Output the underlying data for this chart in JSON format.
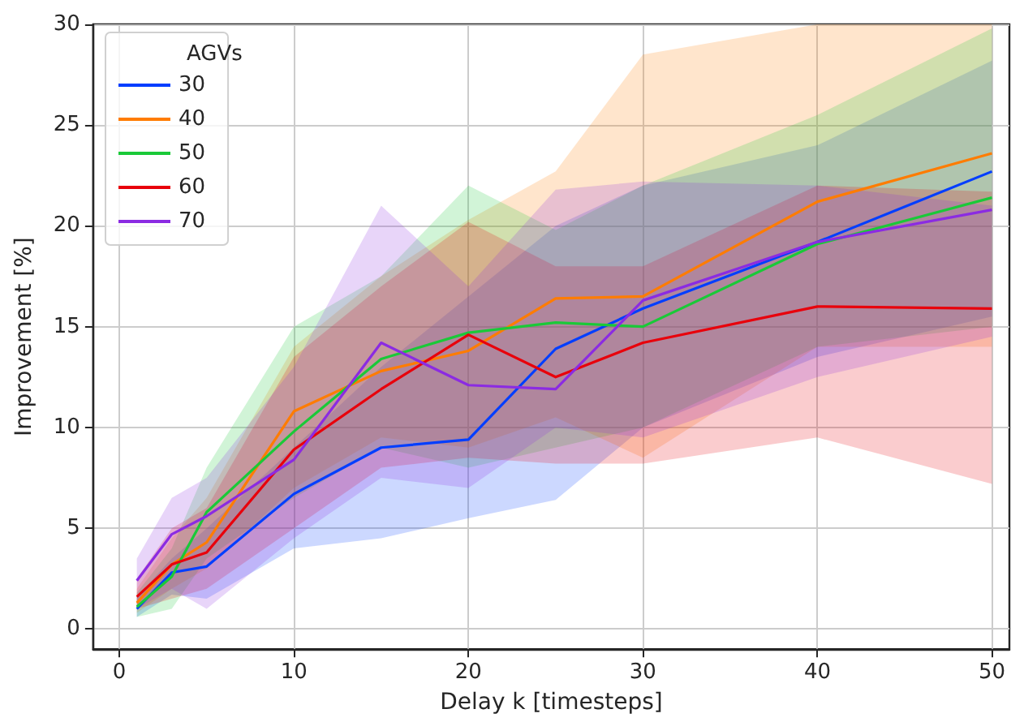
{
  "chart_data": {
    "type": "line",
    "xlabel": "Delay k [timesteps]",
    "ylabel": "Improvement [%]",
    "legend_title": "AGVs",
    "legend": "top left",
    "grid": true,
    "marker": "none",
    "line_style": "solid",
    "x": [
      1,
      3,
      5,
      10,
      15,
      20,
      25,
      30,
      40,
      50
    ],
    "xlim": [
      -1.5,
      51
    ],
    "xticks": [
      0,
      10,
      20,
      30,
      40,
      50
    ],
    "ylim": [
      -1,
      30
    ],
    "yticks": [
      0,
      5,
      10,
      15,
      20,
      25,
      30
    ],
    "series": [
      {
        "name": "30",
        "color": "#023eff",
        "values": [
          1.0,
          2.8,
          3.1,
          6.7,
          9.0,
          9.4,
          13.9,
          15.9,
          19.2,
          22.7
        ],
        "lower": [
          0.6,
          1.7,
          1.5,
          4.0,
          4.5,
          5.5,
          6.4,
          10.0,
          13.5,
          15.5
        ],
        "upper": [
          1.6,
          3.5,
          5.0,
          9.0,
          13.0,
          16.5,
          20.0,
          22.0,
          24.0,
          28.2
        ]
      },
      {
        "name": "40",
        "color": "#ff7c00",
        "values": [
          1.3,
          3.2,
          4.3,
          10.8,
          12.8,
          13.8,
          16.4,
          16.5,
          21.2,
          23.6
        ],
        "lower": [
          0.8,
          2.0,
          3.0,
          7.0,
          9.5,
          9.0,
          10.5,
          8.5,
          14.0,
          14.0
        ],
        "upper": [
          2.0,
          4.5,
          6.5,
          14.0,
          17.5,
          20.3,
          22.7,
          28.5,
          30.0,
          30.0
        ]
      },
      {
        "name": "50",
        "color": "#1ac938",
        "values": [
          1.1,
          2.6,
          5.8,
          9.8,
          13.4,
          14.7,
          15.2,
          15.0,
          19.1,
          21.4
        ],
        "lower": [
          0.6,
          1.0,
          3.5,
          6.5,
          9.0,
          8.0,
          9.0,
          10.0,
          14.0,
          15.0
        ],
        "upper": [
          1.8,
          4.0,
          8.0,
          15.0,
          17.5,
          22.0,
          19.8,
          22.0,
          25.5,
          29.8
        ]
      },
      {
        "name": "60",
        "color": "#e8000b",
        "values": [
          1.6,
          3.2,
          3.8,
          8.9,
          11.9,
          14.6,
          12.5,
          14.2,
          16.0,
          15.9
        ],
        "lower": [
          1.0,
          1.5,
          2.0,
          5.0,
          8.0,
          8.5,
          8.2,
          8.2,
          9.5,
          7.2
        ],
        "upper": [
          2.5,
          5.0,
          6.0,
          13.5,
          17.0,
          20.2,
          18.0,
          18.0,
          22.0,
          21.7
        ]
      },
      {
        "name": "70",
        "color": "#8b2be2",
        "values": [
          2.4,
          4.7,
          5.6,
          8.4,
          14.2,
          12.1,
          11.9,
          16.3,
          19.2,
          20.8
        ],
        "lower": [
          1.0,
          2.0,
          1.0,
          4.5,
          7.5,
          7.0,
          10.0,
          9.5,
          12.5,
          14.5
        ],
        "upper": [
          3.5,
          6.5,
          7.5,
          13.0,
          21.0,
          17.0,
          21.8,
          22.2,
          22.0,
          21.0
        ]
      }
    ]
  }
}
